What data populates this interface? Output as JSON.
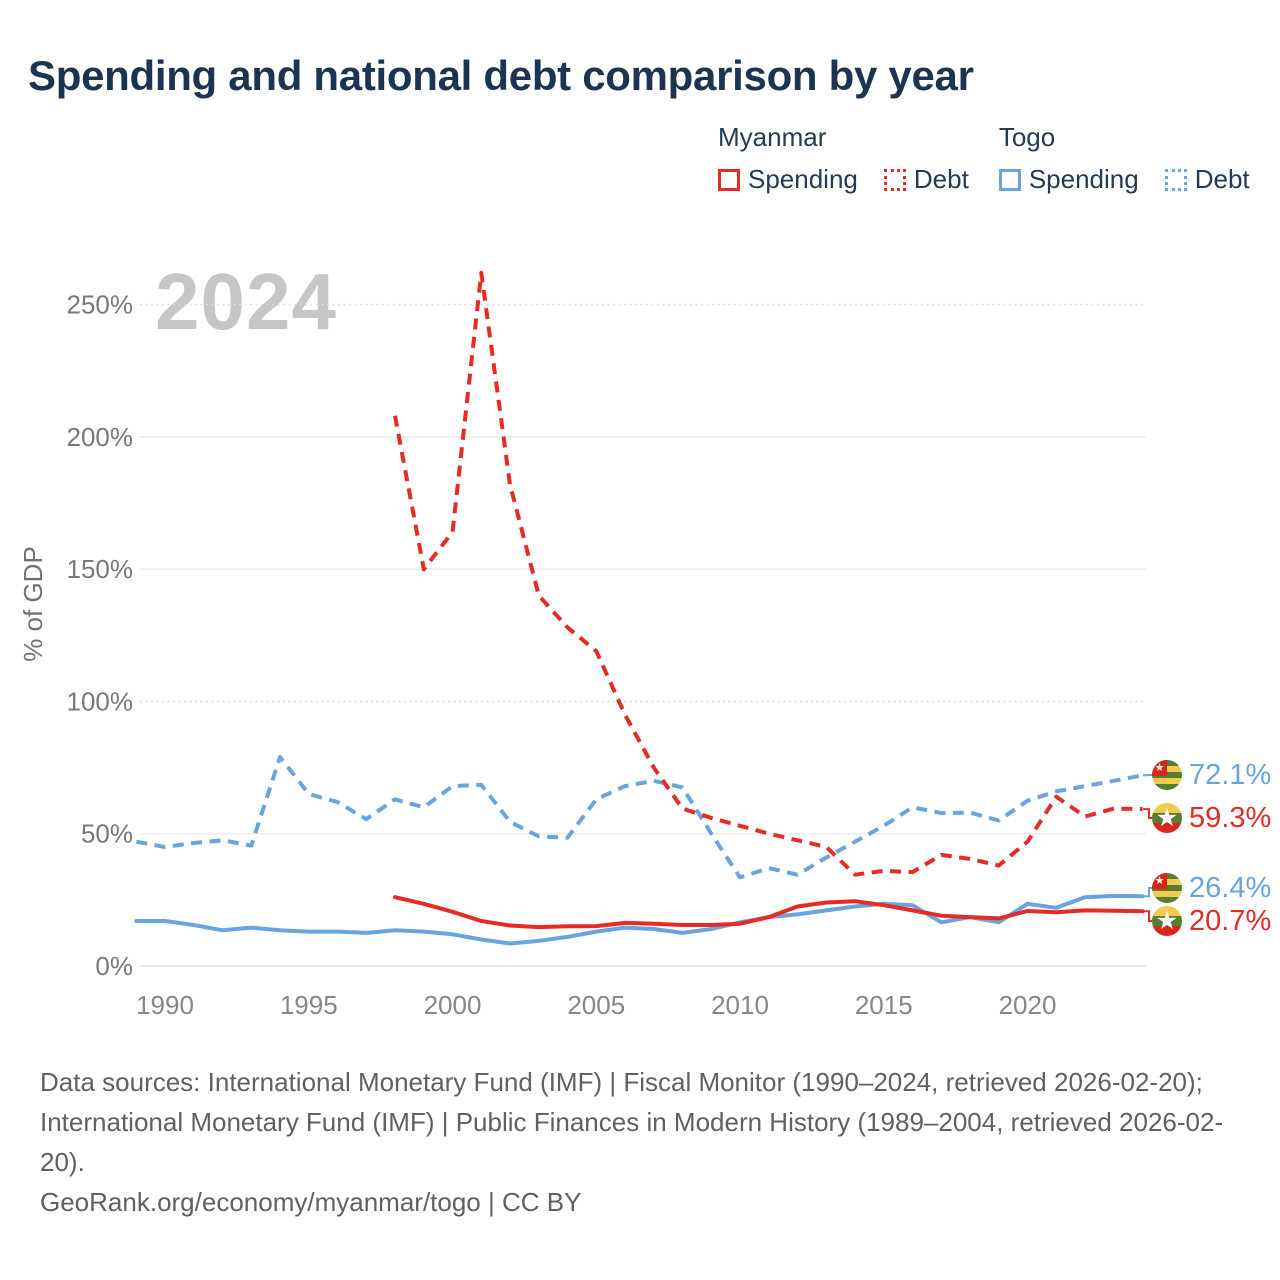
{
  "title": "Spending and national debt comparison by year",
  "watermark": "2024",
  "colors": {
    "myanmar": "#e52b24",
    "togo": "#6aa4e0",
    "title_text": "#1d3450",
    "legend_text": "#243a57",
    "axis_text": "#7c7f84",
    "footer_text": "#5d6166",
    "watermark_text": "#c6c6c6",
    "gridline": "#ececec"
  },
  "legend": {
    "groups": [
      {
        "country": "Myanmar",
        "items": [
          {
            "label": "Spending",
            "line_style": "solid"
          },
          {
            "label": "Debt",
            "line_style": "dotted"
          }
        ]
      },
      {
        "country": "Togo",
        "items": [
          {
            "label": "Spending",
            "line_style": "solid"
          },
          {
            "label": "Debt",
            "line_style": "dotted"
          }
        ]
      }
    ]
  },
  "axes": {
    "y_label": "% of GDP",
    "y_ticks": [
      {
        "value": 0,
        "label": "0%"
      },
      {
        "value": 50,
        "label": "50%"
      },
      {
        "value": 100,
        "label": "100%"
      },
      {
        "value": 150,
        "label": "150%"
      },
      {
        "value": 200,
        "label": "200%"
      },
      {
        "value": 250,
        "label": "250%"
      }
    ],
    "x_ticks": [
      {
        "value": 1990,
        "label": "1990"
      },
      {
        "value": 1995,
        "label": "1995"
      },
      {
        "value": 2000,
        "label": "2000"
      },
      {
        "value": 2005,
        "label": "2005"
      },
      {
        "value": 2010,
        "label": "2010"
      },
      {
        "value": 2015,
        "label": "2015"
      },
      {
        "value": 2020,
        "label": "2020"
      }
    ]
  },
  "end_labels": [
    {
      "series": "togo_debt",
      "flag": "togo",
      "label": "72.1%"
    },
    {
      "series": "myanmar_debt",
      "flag": "myanmar",
      "label": "59.3%"
    },
    {
      "series": "togo_spending",
      "flag": "togo",
      "label": "26.4%"
    },
    {
      "series": "myanmar_spending",
      "flag": "myanmar",
      "label": "20.7%"
    }
  ],
  "footer": {
    "sources": "Data sources: International Monetary Fund (IMF) | Fiscal Monitor (1990–2024, retrieved 2026-02-20); International Monetary Fund (IMF) | Public Finances in Modern History (1989–2004, retrieved 2026-02-20).",
    "attribution": "GeoRank.org/economy/myanmar/togo | CC BY"
  },
  "chart_data": {
    "type": "line",
    "title": "Spending and national debt comparison by year",
    "xlabel": "",
    "ylabel": "% of GDP",
    "xlim": [
      1989,
      2024.5
    ],
    "ylim": [
      0,
      265
    ],
    "grid": true,
    "legend_position": "top-right",
    "watermark": "2024",
    "series": [
      {
        "id": "togo_debt",
        "name": "Togo Debt",
        "country": "Togo",
        "metric": "Debt",
        "color": "#6aa4e0",
        "dash": "dashed",
        "end_label": "72.1%",
        "x": [
          1989,
          1990,
          1991,
          1992,
          1993,
          1994,
          1995,
          1996,
          1997,
          1998,
          1999,
          2000,
          2001,
          2002,
          2003,
          2004,
          2005,
          2006,
          2007,
          2008,
          2009,
          2010,
          2011,
          2012,
          2013,
          2014,
          2015,
          2016,
          2017,
          2018,
          2019,
          2020,
          2021,
          2022,
          2023,
          2024
        ],
        "values": [
          47,
          45,
          46.5,
          47.5,
          45.5,
          79,
          65,
          62,
          55.5,
          63,
          60,
          68,
          68.5,
          54.5,
          49,
          48.5,
          63,
          68,
          70,
          67.5,
          50,
          33.5,
          37,
          34.5,
          41,
          47,
          53,
          60,
          57.8,
          58,
          55,
          62.5,
          66,
          68,
          70,
          72.1
        ]
      },
      {
        "id": "myanmar_debt",
        "name": "Myanmar Debt",
        "country": "Myanmar",
        "metric": "Debt",
        "color": "#e52b24",
        "dash": "dashed",
        "end_label": "59.3%",
        "x": [
          1998,
          1999,
          2000,
          2001,
          2002,
          2003,
          2004,
          2005,
          2006,
          2007,
          2008,
          2009,
          2010,
          2011,
          2012,
          2013,
          2014,
          2015,
          2016,
          2017,
          2018,
          2019,
          2020,
          2021,
          2022,
          2023,
          2024
        ],
        "values": [
          208,
          150,
          164,
          262,
          182,
          140,
          128,
          119,
          95,
          75,
          59.5,
          56,
          53,
          50,
          47.5,
          45,
          34.5,
          36,
          35.5,
          42,
          40.5,
          38,
          47,
          64,
          56.5,
          59.5,
          59.3
        ]
      },
      {
        "id": "togo_spending",
        "name": "Togo Spending",
        "country": "Togo",
        "metric": "Spending",
        "color": "#6aa4e0",
        "dash": "solid",
        "end_label": "26.4%",
        "x": [
          1989,
          1990,
          1991,
          1992,
          1993,
          1994,
          1995,
          1996,
          1997,
          1998,
          1999,
          2000,
          2001,
          2002,
          2003,
          2004,
          2005,
          2006,
          2007,
          2008,
          2009,
          2010,
          2011,
          2012,
          2013,
          2014,
          2015,
          2016,
          2017,
          2018,
          2019,
          2020,
          2021,
          2022,
          2023,
          2024
        ],
        "values": [
          17,
          17,
          15.5,
          13.5,
          14.5,
          13.5,
          13,
          13,
          12.5,
          13.5,
          13,
          12,
          10,
          8.5,
          9.5,
          11,
          13,
          14.5,
          14,
          12.5,
          14,
          16.5,
          18.5,
          19.5,
          21,
          22.5,
          23.5,
          23,
          16.5,
          18.5,
          16.5,
          23.5,
          22,
          26,
          26.5,
          26.4
        ]
      },
      {
        "id": "myanmar_spending",
        "name": "Myanmar Spending",
        "country": "Myanmar",
        "metric": "Spending",
        "color": "#e52b24",
        "dash": "solid",
        "end_label": "20.7%",
        "x": [
          1998,
          1999,
          2000,
          2001,
          2002,
          2003,
          2004,
          2005,
          2006,
          2007,
          2008,
          2009,
          2010,
          2011,
          2012,
          2013,
          2014,
          2015,
          2016,
          2017,
          2018,
          2019,
          2020,
          2021,
          2022,
          2023,
          2024
        ],
        "values": [
          26,
          23.5,
          20.5,
          17,
          15.3,
          14.7,
          15,
          15.1,
          16.3,
          16,
          15.5,
          15.5,
          16,
          18.5,
          22.5,
          24,
          24.5,
          23,
          21,
          19,
          18.5,
          18,
          20.8,
          20.3,
          21,
          20.9,
          20.7
        ]
      }
    ]
  }
}
